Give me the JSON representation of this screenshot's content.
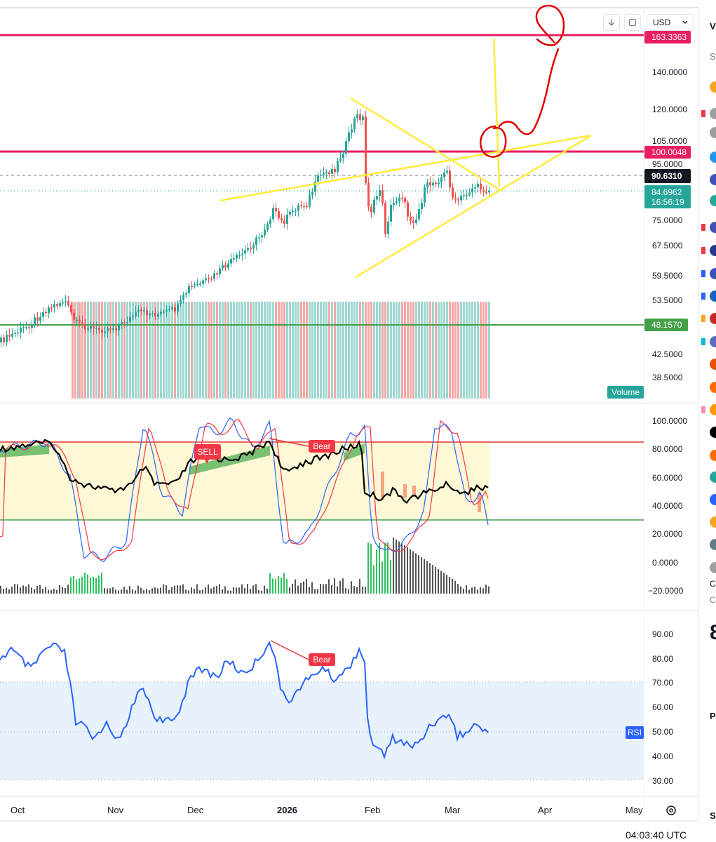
{
  "toolbar": {
    "currency": "USD",
    "download_icon": "download-arrow-icon",
    "screenshot_icon": "frame-icon",
    "chevron_icon": "chevron-down-icon"
  },
  "price_scale": {
    "ticks": [
      "140.0000",
      "120.0000",
      "105.0000",
      "95.0000",
      "75.0000",
      "67.5000",
      "59.5000",
      "53.5000",
      "42.5000",
      "38.5000"
    ],
    "top_marker": "163.3363",
    "level_100": "100.0048",
    "crosshair": "90.6310",
    "last_price": "84.6962",
    "countdown": "16:56:19",
    "level_48": "48.1570",
    "volume_label": "Volume"
  },
  "stoch_scale": {
    "ticks": [
      "100.0000",
      "80.0000",
      "60.0000",
      "40.0000",
      "20.0000",
      "0.0000",
      "−20.0000"
    ],
    "sell_label": "SELL",
    "bear_label": "Bear"
  },
  "rsi_scale": {
    "ticks": [
      "90.00",
      "80.00",
      "70.00",
      "60.00",
      "50.00",
      "40.00",
      "30.00"
    ],
    "rsi_label": "RSI",
    "bear_label": "Bear"
  },
  "time_axis": {
    "labels": [
      "Oct",
      "Nov",
      "Dec",
      "2026",
      "Feb",
      "Mar",
      "Apr",
      "May"
    ],
    "settings_icon": "gear-icon"
  },
  "clock": "04:03:40 UTC",
  "sidebar": {
    "top_letter": "V",
    "row2_letter": "S",
    "row_c1": "C",
    "row_c2": "C",
    "big_digit": "8",
    "row_p": "P",
    "row_s": "S"
  },
  "colors": {
    "up": "#26a69a",
    "down": "#ef5350",
    "magenta_line": "#e91e63",
    "green_line": "#43a047",
    "yellow_drawing": "#ffeb3b",
    "red_drawing": "#e00000",
    "stoch_k": "#2962ff",
    "stoch_d": "#f23645",
    "rsi_line": "#2962ff"
  }
}
